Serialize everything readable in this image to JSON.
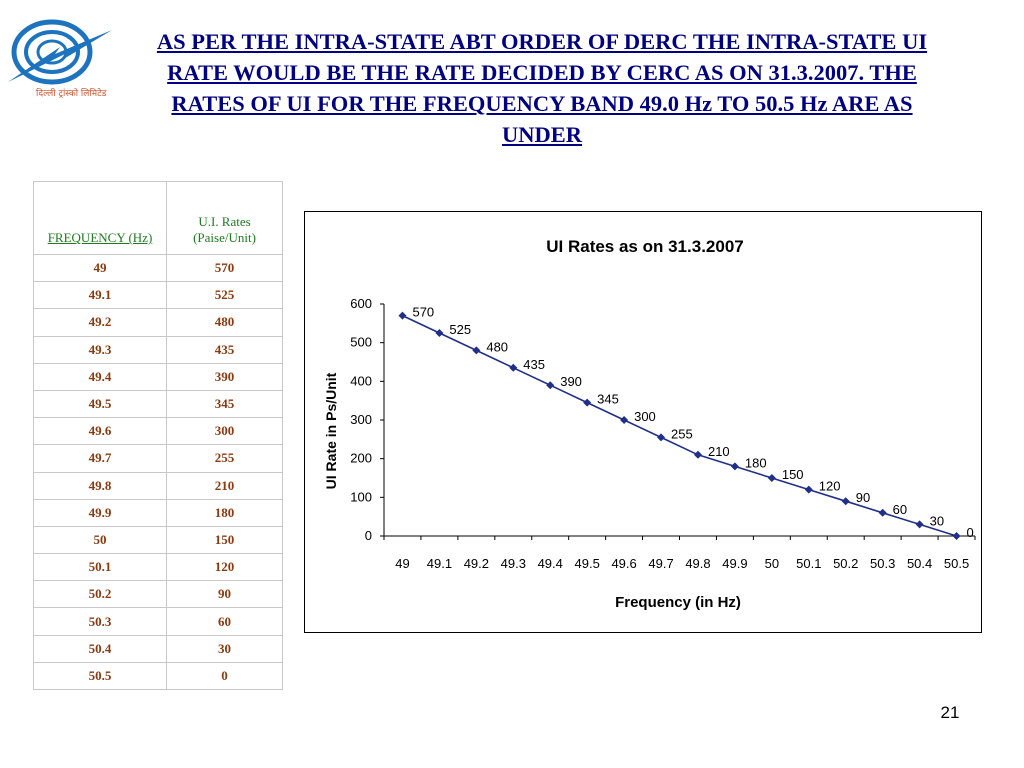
{
  "slide": {
    "title": "AS PER THE INTRA-STATE ABT ORDER OF DERC THE INTRA-STATE UI RATE WOULD BE THE RATE DECIDED BY CERC AS ON 31.3.2007. THE RATES OF UI FOR THE FREQUENCY BAND 49.0 Hz TO 50.5 Hz ARE AS UNDER",
    "page_number": "21"
  },
  "logo": {
    "text": "दिल्ली ट्रांस्को लिमिटेड",
    "colors": [
      "#1e73be",
      "#d4502a"
    ]
  },
  "table": {
    "headers": [
      "FREQUENCY (Hz)",
      "U.I. Rates",
      "(Paise/Unit)"
    ],
    "rows": [
      [
        "49",
        "570"
      ],
      [
        "49.1",
        "525"
      ],
      [
        "49.2",
        "480"
      ],
      [
        "49.3",
        "435"
      ],
      [
        "49.4",
        "390"
      ],
      [
        "49.5",
        "345"
      ],
      [
        "49.6",
        "300"
      ],
      [
        "49.7",
        "255"
      ],
      [
        "49.8",
        "210"
      ],
      [
        "49.9",
        "180"
      ],
      [
        "50",
        "150"
      ],
      [
        "50.1",
        "120"
      ],
      [
        "50.2",
        "90"
      ],
      [
        "50.3",
        "60"
      ],
      [
        "50.4",
        "30"
      ],
      [
        "50.5",
        "0"
      ]
    ]
  },
  "chart_data": {
    "type": "line",
    "title": "UI Rates as on 31.3.2007",
    "xlabel": "Frequency (in Hz)",
    "ylabel": "UI Rate in Ps/Unit",
    "categories": [
      "49",
      "49.1",
      "49.2",
      "49.3",
      "49.4",
      "49.5",
      "49.6",
      "49.7",
      "49.8",
      "49.9",
      "50",
      "50.1",
      "50.2",
      "50.3",
      "50.4",
      "50.5"
    ],
    "values": [
      570,
      525,
      480,
      435,
      390,
      345,
      300,
      255,
      210,
      180,
      150,
      120,
      90,
      60,
      30,
      0
    ],
    "yticks": [
      "0",
      "100",
      "200",
      "300",
      "400",
      "500",
      "600"
    ],
    "ylim": [
      0,
      600
    ],
    "grid": false,
    "legend": "none",
    "data_labels": true,
    "line_color": "#1f2f8a",
    "marker": "diamond"
  }
}
